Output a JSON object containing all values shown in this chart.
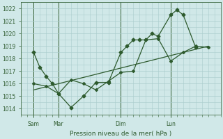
{
  "background_color": "#d0e8e8",
  "grid_color": "#aacccc",
  "line_color": "#2d5a2d",
  "text_color": "#2d5a2d",
  "xlabel": "Pression niveau de la mer( hPa )",
  "ylim": [
    1013.5,
    1022.5
  ],
  "yticks": [
    1014,
    1015,
    1016,
    1017,
    1018,
    1019,
    1020,
    1021,
    1022
  ],
  "xlim": [
    0,
    96
  ],
  "day_labels": [
    "Sam",
    "Mar",
    "Dim",
    "Lun"
  ],
  "day_positions": [
    6,
    18,
    48,
    72
  ],
  "vline_positions": [
    6,
    18,
    48,
    72
  ],
  "series1_x": [
    6,
    9,
    12,
    15,
    18,
    24,
    30,
    36,
    42,
    48,
    51,
    54,
    57,
    60,
    63,
    66,
    72,
    75,
    78,
    84
  ],
  "series1_y": [
    1018.5,
    1017.3,
    1016.6,
    1016.0,
    1015.2,
    1014.1,
    1015.0,
    1016.1,
    1016.1,
    1018.5,
    1019.0,
    1019.5,
    1019.5,
    1019.5,
    1020.0,
    1019.8,
    1021.5,
    1021.9,
    1021.5,
    1018.9
  ],
  "series2_x": [
    6,
    12,
    18,
    24,
    30,
    36,
    42,
    48,
    54,
    60,
    66,
    72,
    78,
    84,
    90
  ],
  "series2_y": [
    1016.0,
    1015.8,
    1015.2,
    1016.3,
    1016.0,
    1015.5,
    1016.2,
    1016.9,
    1017.0,
    1019.5,
    1019.6,
    1017.8,
    1018.5,
    1019.0,
    1018.9
  ],
  "series3_x": [
    6,
    90
  ],
  "series3_y": [
    1015.5,
    1019.0
  ]
}
